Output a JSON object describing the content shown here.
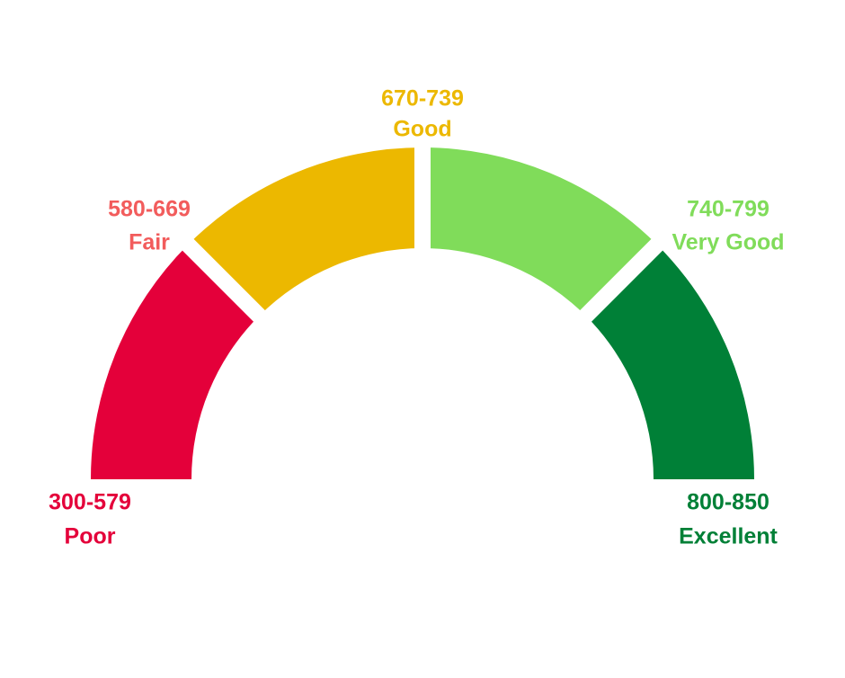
{
  "labels": [
    {
      "range": "300-579",
      "name": "Poor"
    },
    {
      "range": "580-669",
      "name": "Fair"
    },
    {
      "range": "670-739",
      "name": "Good"
    },
    {
      "range": "740-799",
      "name": "Very Good"
    },
    {
      "range": "800-850",
      "name": "Excellent"
    }
  ]
}
